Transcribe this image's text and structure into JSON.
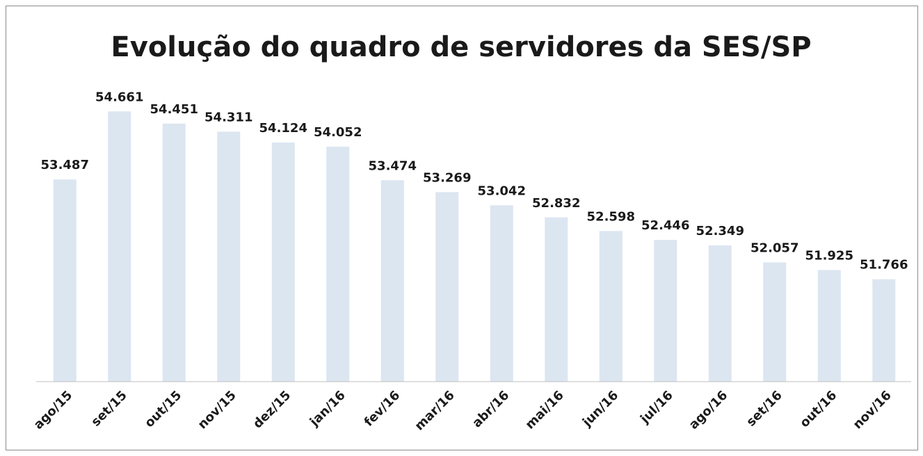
{
  "chart_data": {
    "type": "bar",
    "title": "Evolução do quadro de servidores da SES/SP",
    "categories": [
      "ago/15",
      "set/15",
      "out/15",
      "nov/15",
      "dez/15",
      "jan/16",
      "fev/16",
      "mar/16",
      "abr/16",
      "mai/16",
      "jun/16",
      "jul/16",
      "ago/16",
      "set/16",
      "out/16",
      "nov/16"
    ],
    "values": [
      53487,
      54661,
      54451,
      54311,
      54124,
      54052,
      53474,
      53269,
      53042,
      52832,
      52598,
      52446,
      52349,
      52057,
      51925,
      51766
    ],
    "value_labels": [
      "53.487",
      "54.661",
      "54.451",
      "54.311",
      "54.124",
      "54.052",
      "53.474",
      "53.269",
      "53.042",
      "52.832",
      "52.598",
      "52.446",
      "52.349",
      "52.057",
      "51.925",
      "51.766"
    ],
    "color": "#dce6f1",
    "ylim": [
      50000,
      55000
    ]
  }
}
